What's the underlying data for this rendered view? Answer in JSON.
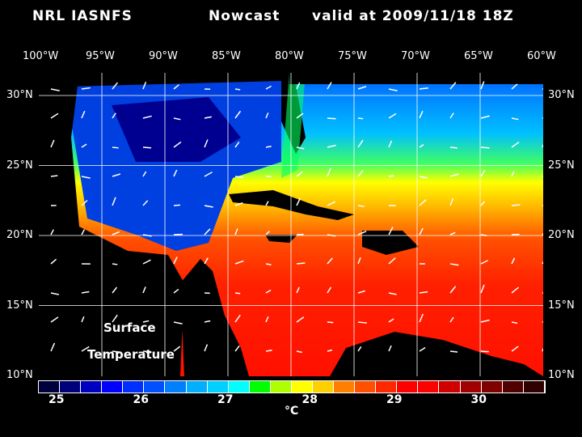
{
  "header": {
    "left": "NRL IASNFS",
    "mid": "Nowcast",
    "right": "valid at 2009/11/18 18Z"
  },
  "lon_labels": [
    "100°W",
    "95°W",
    "90°W",
    "85°W",
    "80°W",
    "75°W",
    "70°W",
    "65°W",
    "60°W"
  ],
  "lat_labels": [
    "30°N",
    "25°N",
    "20°N",
    "15°N",
    "10°N"
  ],
  "annotation": {
    "line1": "Surface",
    "line2": "Temperature"
  },
  "colorbar": {
    "ticks": [
      "25",
      "26",
      "27",
      "28",
      "29",
      "30"
    ],
    "unit": "°C",
    "colors": [
      "#00003a",
      "#00007a",
      "#0000c0",
      "#0000ff",
      "#0030ff",
      "#0050ff",
      "#0080ff",
      "#00b0ff",
      "#00d0ff",
      "#00ffff",
      "#00ff00",
      "#b0ff00",
      "#ffff00",
      "#ffd000",
      "#ff8000",
      "#ff5000",
      "#ff2800",
      "#ff0000",
      "#ff0000",
      "#d00000",
      "#a00000",
      "#800000",
      "#500000",
      "#300000"
    ]
  }
}
